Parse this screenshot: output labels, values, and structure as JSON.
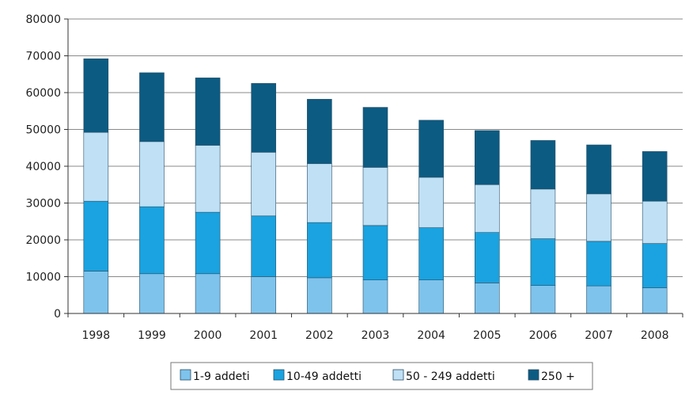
{
  "chart_data": {
    "type": "bar",
    "stacked": true,
    "title": "",
    "xlabel": "",
    "ylabel": "",
    "categories": [
      "1998",
      "1999",
      "2000",
      "2001",
      "2002",
      "2003",
      "2004",
      "2005",
      "2006",
      "2007",
      "2008"
    ],
    "ylim": [
      0,
      80000
    ],
    "yticks": [
      "0",
      "10000",
      "20000",
      "30000",
      "40000",
      "50000",
      "60000",
      "70000",
      "80000"
    ],
    "grid": true,
    "legend_position": "bottom",
    "series": [
      {
        "name": "1-9 addeti",
        "color": "#7ec3ec",
        "values": [
          11500,
          10800,
          10800,
          10000,
          9700,
          9100,
          9100,
          8300,
          7600,
          7500,
          7000
        ]
      },
      {
        "name": "10-49 addetti",
        "color": "#1aa3e0",
        "values": [
          19000,
          18200,
          16700,
          16500,
          15000,
          14800,
          14200,
          13700,
          12700,
          12100,
          12000
        ]
      },
      {
        "name": "50 - 249 addetti",
        "color": "#bfe0f5",
        "values": [
          18700,
          17700,
          18200,
          17300,
          16000,
          15800,
          13700,
          13000,
          13500,
          12900,
          11500
        ]
      },
      {
        "name": "250 +",
        "color": "#0c5b82",
        "values": [
          20000,
          18700,
          18300,
          18700,
          17500,
          16300,
          15500,
          14700,
          13200,
          13300,
          13500
        ]
      }
    ]
  }
}
